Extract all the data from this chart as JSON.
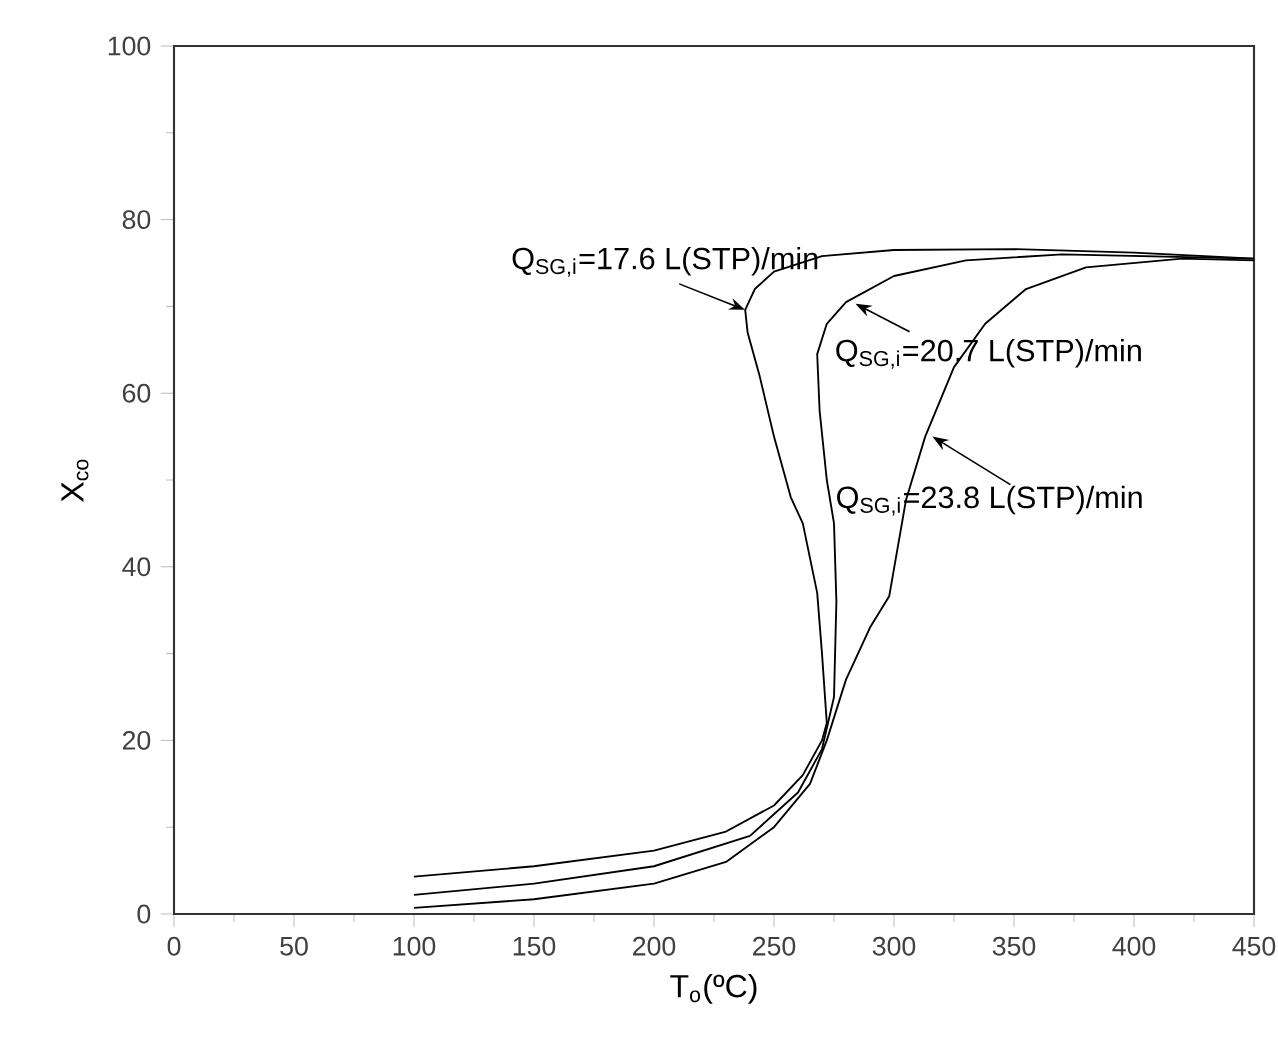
{
  "chart_data": {
    "type": "line",
    "xlabel": "T$_{o}$(ºC)",
    "ylabel": "X$_{co}$",
    "xlim": [
      0,
      450
    ],
    "ylim": [
      0,
      100
    ],
    "xticks": [
      0,
      50,
      100,
      150,
      200,
      250,
      300,
      350,
      400,
      450
    ],
    "yticks": [
      0,
      20,
      40,
      60,
      80,
      100
    ],
    "series": [
      {
        "color": "#000000",
        "x": [
          100,
          150,
          200,
          230,
          250,
          262,
          270,
          272,
          270,
          268,
          262,
          257,
          250,
          244,
          239,
          238,
          242,
          250,
          270,
          300,
          350,
          400,
          450
        ],
        "values": [
          4.3,
          5.5,
          7.3,
          9.5,
          12.5,
          16,
          20,
          22,
          30,
          37,
          45,
          48,
          55,
          62,
          67,
          69.6,
          72,
          74,
          75.8,
          76.5,
          76.6,
          76.2,
          75.5
        ]
      },
      {
        "color": "#000000",
        "x": [
          100,
          150,
          200,
          240,
          260,
          270,
          275,
          276,
          275,
          272,
          269,
          268,
          272,
          280,
          300,
          330,
          370,
          450
        ],
        "values": [
          2.2,
          3.5,
          5.5,
          9,
          14,
          19,
          25,
          36,
          45,
          50,
          58,
          64.5,
          68,
          70.5,
          73.5,
          75.3,
          76,
          75.5
        ]
      },
      {
        "color": "#000000",
        "x": [
          100,
          150,
          200,
          230,
          250,
          265,
          272,
          280,
          290,
          298,
          305,
          313,
          325,
          338,
          355,
          380,
          420,
          450
        ],
        "values": [
          0.7,
          1.7,
          3.5,
          6,
          10,
          15,
          20,
          27,
          33,
          36.6,
          47.7,
          55,
          63,
          68,
          72,
          74.5,
          75.5,
          75.3
        ]
      }
    ],
    "annotations": [
      {
        "text": "Q$_{SG,i}$=17.6 L(STP)/min",
        "x": 238,
        "y": 69.6
      },
      {
        "text": "Q$_{SG,i}$=20.7 L(STP)/min",
        "x": 284,
        "y": 70.3
      },
      {
        "text": "Q$_{SG,i}$=23.8 L(STP)/min",
        "x": 316,
        "y": 55
      }
    ]
  }
}
